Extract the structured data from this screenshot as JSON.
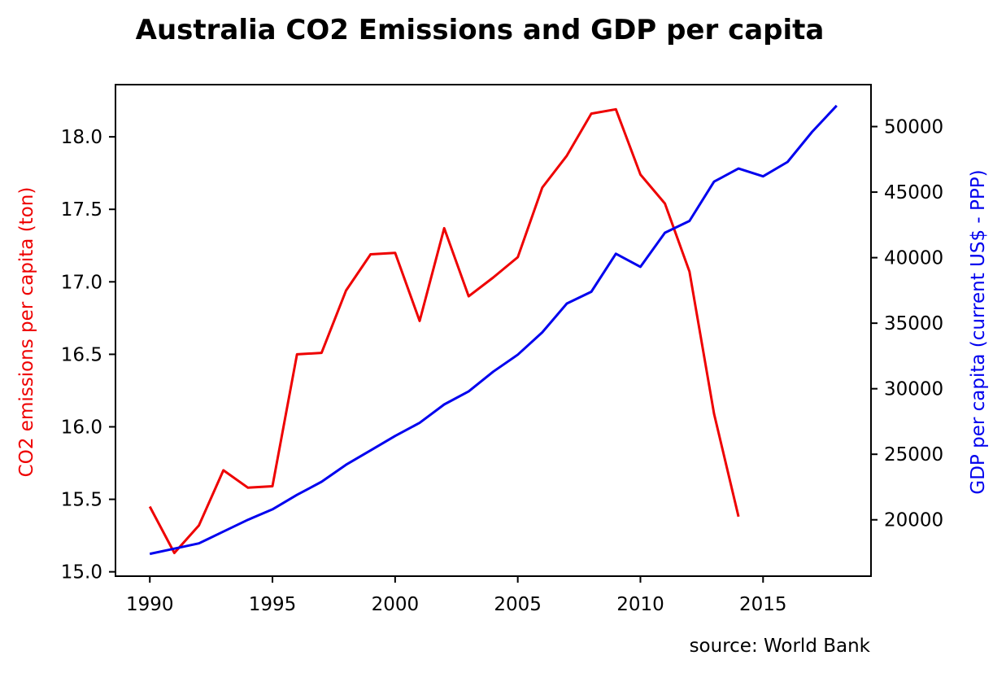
{
  "chart_data": {
    "type": "line",
    "title": "Australia CO2 Emissions and GDP per capita",
    "source_note": "source: World Bank",
    "x_axis": {
      "xlim": [
        1988.6,
        2019.4
      ],
      "ticks": [
        1990,
        1995,
        2000,
        2005,
        2010,
        2015
      ],
      "tick_labels": [
        "1990",
        "1995",
        "2000",
        "2005",
        "2010",
        "2015"
      ]
    },
    "y_left": {
      "label": "CO2 emissions per capita (ton)",
      "color": "#ee0000",
      "ylim": [
        14.97,
        18.36
      ],
      "ticks": [
        15.0,
        15.5,
        16.0,
        16.5,
        17.0,
        17.5,
        18.0
      ],
      "tick_labels": [
        "15.0",
        "15.5",
        "16.0",
        "16.5",
        "17.0",
        "17.5",
        "18.0"
      ]
    },
    "y_right": {
      "label": "GDP per capita (current US$ - PPP)",
      "color": "#0000ee",
      "ylim": [
        15700,
        53200
      ],
      "ticks": [
        20000,
        25000,
        30000,
        35000,
        40000,
        45000,
        50000
      ],
      "tick_labels": [
        "20000",
        "25000",
        "30000",
        "35000",
        "40000",
        "45000",
        "50000"
      ]
    },
    "series": [
      {
        "axis": "left",
        "color": "#ee0000",
        "x": [
          1990,
          1991,
          1992,
          1993,
          1994,
          1995,
          1996,
          1997,
          1998,
          1999,
          2000,
          2001,
          2002,
          2003,
          2004,
          2005,
          2006,
          2007,
          2008,
          2009,
          2010,
          2011,
          2012,
          2013,
          2014
        ],
        "values": [
          15.45,
          15.13,
          15.32,
          15.7,
          15.58,
          15.59,
          16.5,
          16.51,
          16.94,
          17.19,
          17.2,
          16.73,
          17.37,
          16.9,
          17.03,
          17.17,
          17.65,
          17.87,
          18.16,
          18.19,
          17.74,
          17.54,
          17.07,
          16.09,
          15.38
        ]
      },
      {
        "axis": "right",
        "color": "#0000ee",
        "x": [
          1990,
          1991,
          1992,
          1993,
          1994,
          1995,
          1996,
          1997,
          1998,
          1999,
          2000,
          2001,
          2002,
          2003,
          2004,
          2005,
          2006,
          2007,
          2008,
          2009,
          2010,
          2011,
          2012,
          2013,
          2014,
          2015,
          2016,
          2017,
          2018
        ],
        "values": [
          17400,
          17800,
          18200,
          19100,
          20000,
          20800,
          21900,
          22900,
          24200,
          25300,
          26400,
          27400,
          28800,
          29800,
          31300,
          32600,
          34300,
          36500,
          37400,
          40300,
          39300,
          41900,
          42800,
          45800,
          46800,
          46200,
          47300,
          49600,
          51600
        ]
      }
    ]
  }
}
